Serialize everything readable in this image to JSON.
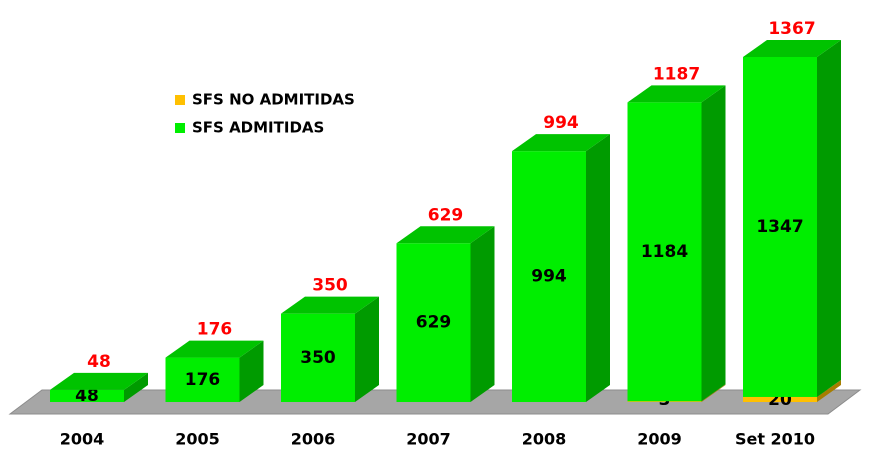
{
  "chart_data": {
    "type": "bar3d_stacked",
    "categories": [
      "2004",
      "2005",
      "2006",
      "2007",
      "2008",
      "2009",
      "Set 2010"
    ],
    "series": [
      {
        "name": "SFS NO ADMITIDAS",
        "color": "#ffc000",
        "values": [
          0,
          0,
          0,
          0,
          0,
          3,
          20
        ]
      },
      {
        "name": "SFS ADMITIDAS",
        "color": "#00ee00",
        "values": [
          48,
          176,
          350,
          629,
          994,
          1184,
          1347
        ]
      }
    ],
    "totals": [
      48,
      176,
      350,
      629,
      994,
      1187,
      1367
    ],
    "total_color": "#ff0000"
  }
}
